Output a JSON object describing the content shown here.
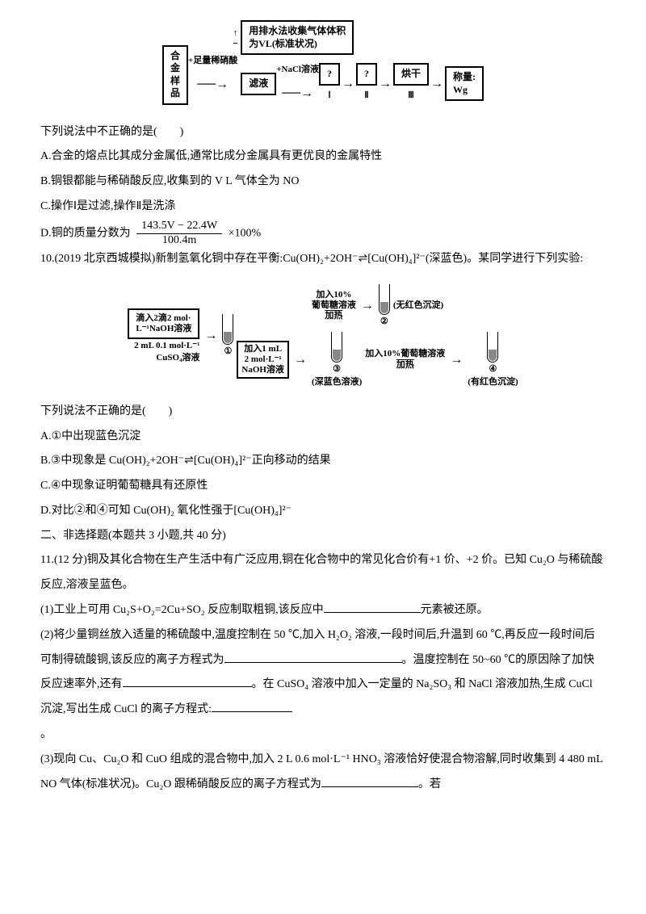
{
  "diagram1": {
    "box_left": "合\n金\n样\n品",
    "plus_label": "+足量稀硝酸",
    "top_box": "用排水法收集气体体积\n为VL(标准状况)",
    "mid_left": "滤液",
    "mid_plus": "+NaCl溶液",
    "op1": "?",
    "op2": "?",
    "op3": "烘干",
    "op_labels": [
      "Ⅰ",
      "Ⅱ",
      "Ⅲ"
    ],
    "end_box": "称量:\nWg"
  },
  "q_pre": "下列说法中不正确的是(　　)",
  "qA": "A.合金的熔点比其成分金属低,通常比成分金属具有更优良的金属特性",
  "qB": "B.铜银都能与稀硝酸反应,收集到的 V L 气体全为 NO",
  "qC": "C.操作Ⅰ是过滤,操作Ⅱ是洗涤",
  "qD_prefix": "D.铜的质量分数为",
  "qD_num": "143.5V − 22.4W",
  "qD_den": "100.4m",
  "qD_suffix": "×100%",
  "q10_head": "10.(2019 北京西城模拟)新制氢氧化铜中存在平衡:Cu(OH)₂+2OH⁻⇌[Cu(OH)₄]²⁻(深蓝色)。某同学进行下列实验:",
  "diagram2": {
    "left_txt1": "滴入2滴2 mol·",
    "left_txt2": "L⁻¹NaOH溶液",
    "left_txt3": "2 mL 0.1 mol·L⁻¹",
    "left_txt4": "CuSO₄溶液",
    "top_mid_txt1": "加入10%",
    "top_mid_txt2": "葡萄糖溶液",
    "top_mid_txt3": "加热",
    "top_right": "(无红色沉淀)",
    "bot_txt1": "加入1 mL",
    "bot_txt2": "2 mol·L⁻¹",
    "bot_txt3": "NaOH溶液",
    "bot_right1": "加入10%葡萄糖溶液",
    "bot_right2": "加热",
    "lbl1": "①",
    "lbl2": "②",
    "lbl3": "③",
    "lbl4": "④",
    "cap3": "(深蓝色溶液)",
    "cap4": "(有红色沉淀)"
  },
  "q10_pre": "下列说法不正确的是(　　)",
  "q10A": "A.①中出现蓝色沉淀",
  "q10B": "B.③中现象是 Cu(OH)₂+2OH⁻⇌[Cu(OH)₄]²⁻正向移动的结果",
  "q10C": "C.④中现象证明葡萄糖具有还原性",
  "q10D": "D.对比②和④可知 Cu(OH)₂ 氧化性强于[Cu(OH)₄]²⁻",
  "section2": "二、非选择题(本题共 3 小题,共 40 分)",
  "q11_head": "11.(12 分)铜及其化合物在生产生活中有广泛应用,铜在化合物中的常见化合价有+1 价、+2 价。已知 Cu₂O 与稀硫酸反应,溶液呈蓝色。",
  "q11_1_pre": "(1)工业上可用 Cu₂S+O₂=2Cu+SO₂ 反应制取粗铜,该反应中",
  "q11_1_suf": "元素被还原。",
  "q11_2_a": "(2)将少量铜丝放入适量的稀硫酸中,温度控制在 50 ℃,加入 H₂O₂ 溶液,一段时间后,升温到 60 ℃,再反应一段时间后可制得硫酸铜,该反应的离子方程式为",
  "q11_2_b": "。温度控制在 50~60 ℃的原因除了加快反应速率外,还有",
  "q11_2_c": "。在 CuSO₄ 溶液中加入一定量的 Na₂SO₃ 和 NaCl 溶液加热,生成 CuCl 沉淀,写出生成 CuCl 的离子方程式:",
  "q11_2_d": "。",
  "q11_3_a": "(3)现向 Cu、Cu₂O 和 CuO 组成的混合物中,加入 2 L 0.6 mol·L⁻¹ HNO₃ 溶液恰好使混合物溶解,同时收集到 4 480 mL NO 气体(标准状况)。Cu₂O 跟稀硝酸反应的离子方程式为",
  "q11_3_b": "。若"
}
